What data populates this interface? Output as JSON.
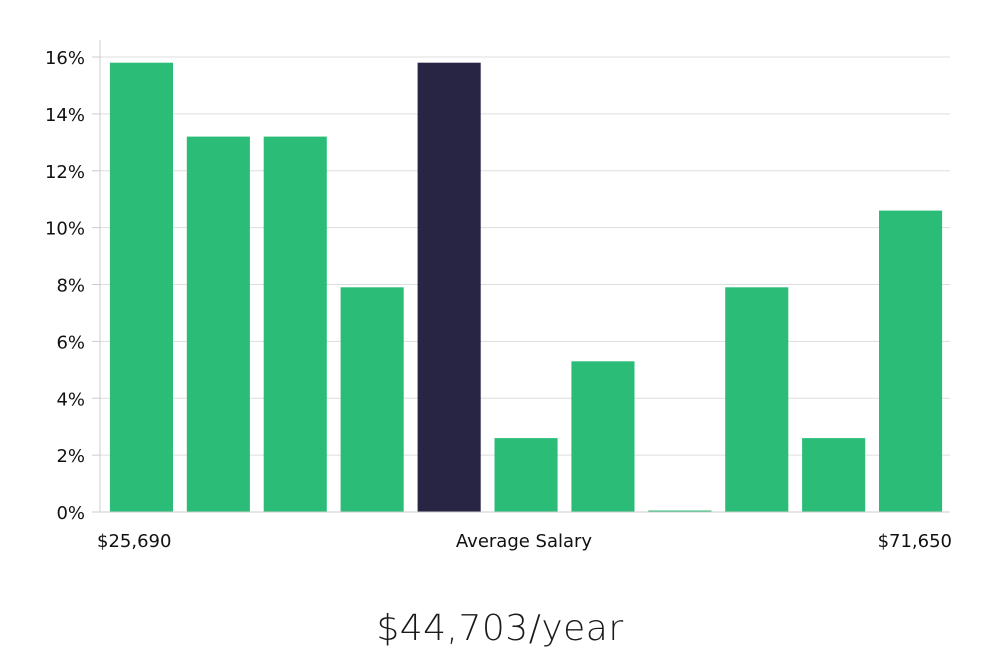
{
  "chart_data": {
    "type": "bar",
    "values": [
      15.8,
      13.2,
      13.2,
      7.9,
      15.8,
      2.6,
      5.3,
      0,
      7.9,
      2.6,
      10.6
    ],
    "highlight_index": 4,
    "ylim": [
      0,
      16
    ],
    "yticks": [
      "0%",
      "2%",
      "4%",
      "6%",
      "8%",
      "10%",
      "12%",
      "14%",
      "16%"
    ],
    "x_labels": {
      "min": "$25,690",
      "middle": "Average Salary",
      "max": "$71,650"
    },
    "grid": true,
    "colors": {
      "bar": "#2bbd78",
      "highlight": "#282443",
      "grid": "#dddddd",
      "axis": "#cccccc"
    }
  },
  "headline": "$44,703/year"
}
